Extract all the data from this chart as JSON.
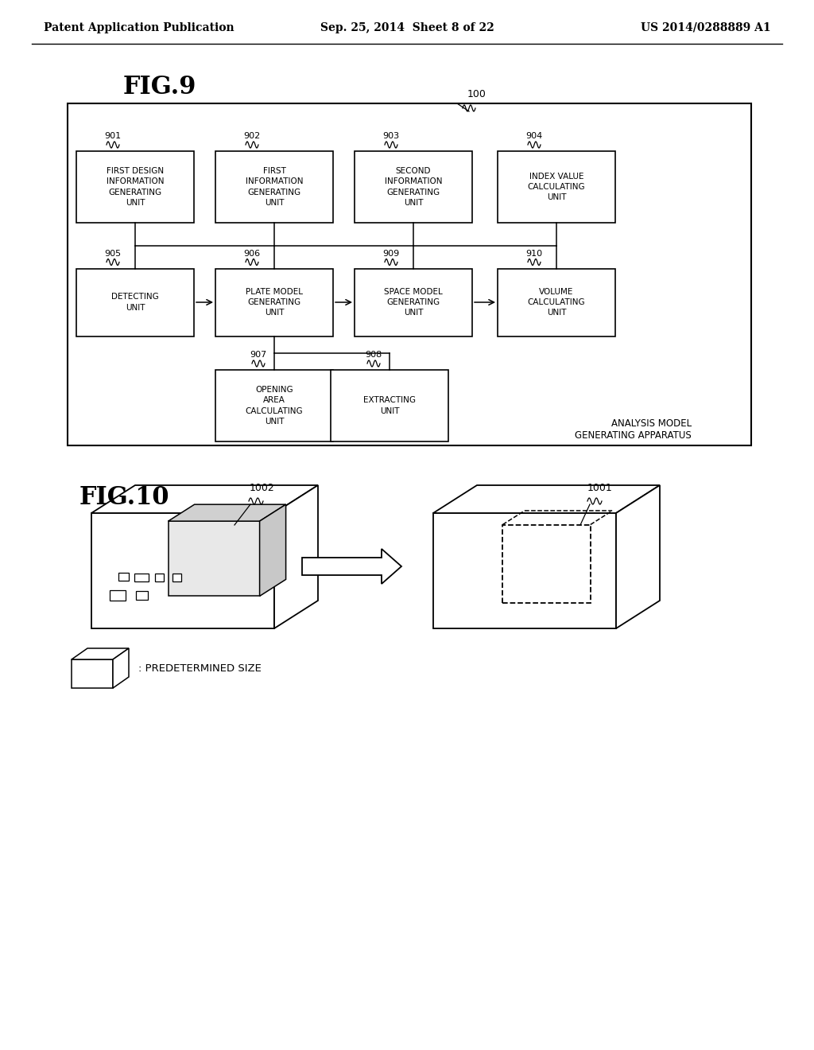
{
  "background_color": "#ffffff",
  "header_left": "Patent Application Publication",
  "header_center": "Sep. 25, 2014  Sheet 8 of 22",
  "header_right": "US 2014/0288889 A1",
  "fig9_label": "FIG.9",
  "fig10_label": "FIG.10",
  "outer_box_label": "100",
  "apparatus_label": "ANALYSIS MODEL\nGENERATING APPARATUS",
  "row1_refs": [
    "901",
    "902",
    "903",
    "904"
  ],
  "row1_labels": [
    "FIRST DESIGN\nINFORMATION\nGENERATING\nUNIT",
    "FIRST\nINFORMATION\nGENERATING\nUNIT",
    "SECOND\nINFORMATION\nGENERATING\nUNIT",
    "INDEX VALUE\nCALCULATING\nUNIT"
  ],
  "row2_refs": [
    "905",
    "906",
    "909",
    "910"
  ],
  "row2_labels": [
    "DETECTING\nUNIT",
    "PLATE MODEL\nGENERATING\nUNIT",
    "SPACE MODEL\nGENERATING\nUNIT",
    "VOLUME\nCALCULATING\nUNIT"
  ],
  "row3_refs": [
    "907",
    "908"
  ],
  "row3_labels": [
    "OPENING\nAREA\nCALCULATING\nUNIT",
    "EXTRACTING\nUNIT"
  ],
  "ref_1001": "1001",
  "ref_1002": "1002",
  "legend_text": ": PREDETERMINED SIZE"
}
